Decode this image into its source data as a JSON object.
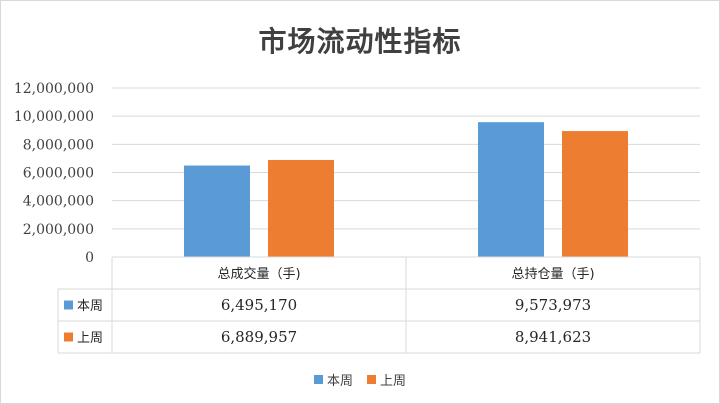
{
  "chart_data": {
    "type": "bar",
    "title": "市场流动性指标",
    "categories": [
      "总成交量（手)",
      "总持仓量（手)"
    ],
    "series": [
      {
        "name": "本周",
        "color": "#5b9bd5",
        "values": [
          6495170,
          9573973
        ],
        "labels": [
          "6,495,170",
          "9,573,973"
        ]
      },
      {
        "name": "上周",
        "color": "#ed7d31",
        "values": [
          6889957,
          8941623
        ],
        "labels": [
          "6,889,957",
          "8,941,623"
        ]
      }
    ],
    "ylim": [
      0,
      12000000
    ],
    "yticks": [
      {
        "value": 0,
        "label": "0"
      },
      {
        "value": 2000000,
        "label": "2,000,000"
      },
      {
        "value": 4000000,
        "label": "4,000,000"
      },
      {
        "value": 6000000,
        "label": "6,000,000"
      },
      {
        "value": 8000000,
        "label": "8,000,000"
      },
      {
        "value": 10000000,
        "label": "10,000,000"
      },
      {
        "value": 12000000,
        "label": "12,000,000"
      }
    ],
    "grid": true,
    "legend_position": "bottom",
    "data_table": true
  }
}
